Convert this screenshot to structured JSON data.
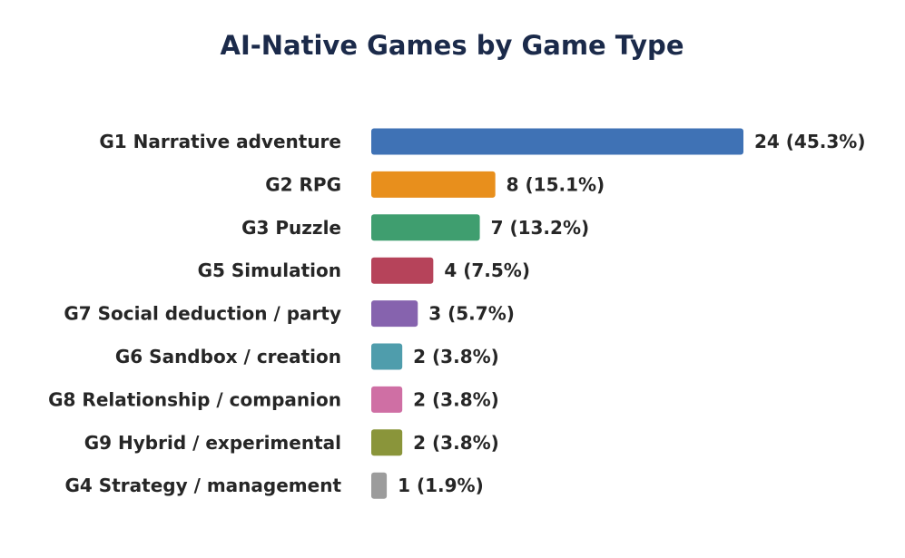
{
  "chart_data": {
    "type": "bar",
    "orientation": "horizontal",
    "title": "AI-Native Games by Game Type",
    "xlabel": "",
    "ylabel": "",
    "grid": false,
    "legend": "none",
    "xlim": [
      0,
      24
    ],
    "categories": [
      "G1  Narrative adventure",
      "G2  RPG",
      "G3  Puzzle",
      "G5  Simulation",
      "G7  Social deduction / party",
      "G6  Sandbox / creation",
      "G8  Relationship / companion",
      "G9  Hybrid / experimental",
      "G4  Strategy / management"
    ],
    "values": [
      24,
      8,
      7,
      4,
      3,
      2,
      2,
      2,
      1
    ],
    "data_labels": [
      "24  (45.3%)",
      "8  (15.1%)",
      "7  (13.2%)",
      "4  (7.5%)",
      "3  (5.7%)",
      "2  (3.8%)",
      "2  (3.8%)",
      "2  (3.8%)",
      "1  (1.9%)"
    ],
    "colors": [
      "#3f72b5",
      "#e88f1c",
      "#3f9e6f",
      "#b6435a",
      "#8663ae",
      "#4f9dac",
      "#cf6fa4",
      "#8a953a",
      "#9c9c9c"
    ]
  }
}
